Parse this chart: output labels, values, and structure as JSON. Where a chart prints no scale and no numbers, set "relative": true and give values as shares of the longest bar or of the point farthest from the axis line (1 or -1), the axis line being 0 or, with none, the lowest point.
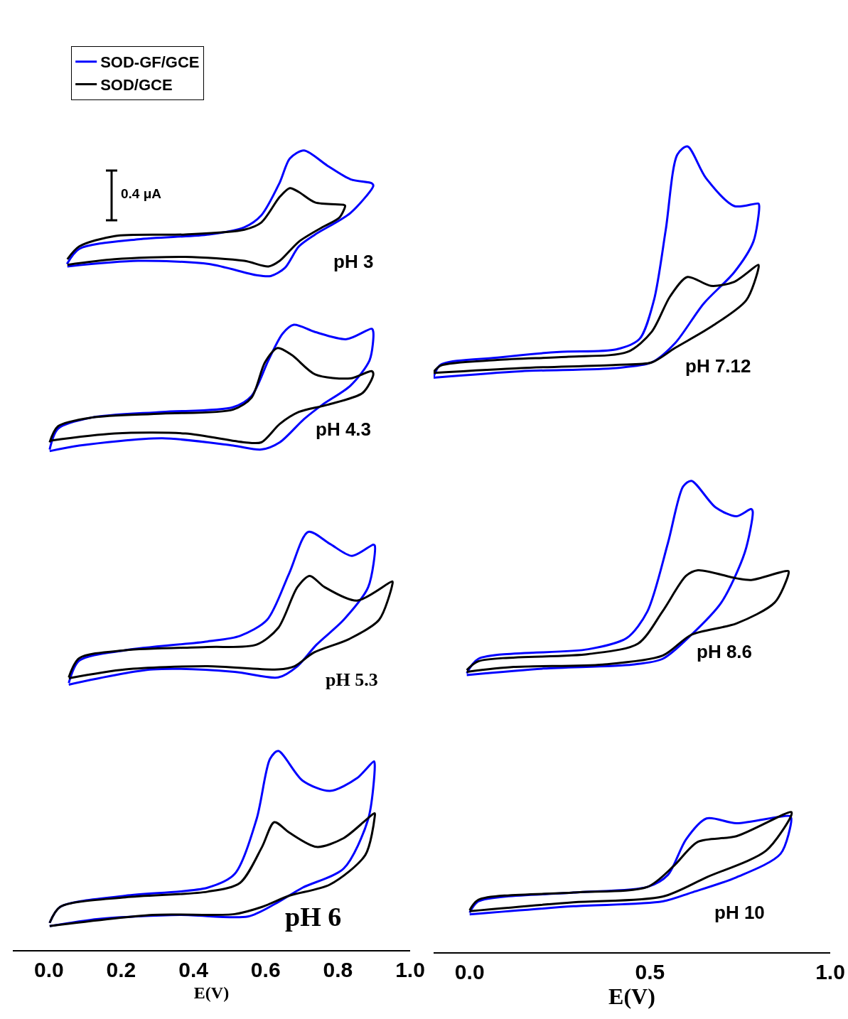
{
  "chart_data": [
    {
      "type": "line",
      "relative": true,
      "xlabel": "E(V)",
      "xlim": [
        -0.1,
        1.0
      ],
      "xticks": [
        {
          "value": 0,
          "label": "0.0"
        },
        0.2,
        0.4,
        0.6,
        0.8,
        {
          "value": 1,
          "label": "1.0"
        }
      ],
      "legend": "top left",
      "marker": "none",
      "annotations": [
        "0.4 μA",
        "pH 3",
        "pH 4.3",
        "pH 5.3",
        "pH 6"
      ],
      "series": [
        {
          "name": "SOD-GF/GCE",
          "color": "#0000ff",
          "x": [
            0.05,
            0.084,
            0.247,
            0.443,
            0.541,
            0.588,
            0.639,
            0.667,
            0.706,
            0.771,
            0.835,
            0.894,
            0.898,
            0.835,
            0.737,
            0.692,
            0.653,
            0.614,
            0.575,
            0.443,
            0.247,
            0.051
          ],
          "values": [
            0.858,
            0.877,
            0.889,
            0.895,
            0.904,
            0.919,
            0.96,
            0.99,
            1.0,
            0.981,
            0.964,
            0.959,
            0.956,
            0.922,
            0.895,
            0.88,
            0.853,
            0.843,
            0.844,
            0.858,
            0.862,
            0.855
          ]
        },
        {
          "name": "SOD/GCE",
          "color": "#000000",
          "x": [
            0.051,
            0.084,
            0.182,
            0.378,
            0.541,
            0.588,
            0.639,
            0.667,
            0.692,
            0.737,
            0.816,
            0.82,
            0.804,
            0.757,
            0.692,
            0.639,
            0.608,
            0.541,
            0.378,
            0.182,
            0.051
          ],
          "values": [
            0.864,
            0.88,
            0.893,
            0.895,
            0.901,
            0.91,
            0.942,
            0.953,
            0.948,
            0.935,
            0.932,
            0.931,
            0.916,
            0.904,
            0.886,
            0.862,
            0.855,
            0.862,
            0.867,
            0.864,
            0.857
          ]
        },
        {
          "color": "#0000ff",
          "x": [
            0.002,
            0.025,
            0.118,
            0.314,
            0.51,
            0.561,
            0.608,
            0.647,
            0.678,
            0.737,
            0.824,
            0.894,
            0.898,
            0.888,
            0.835,
            0.757,
            0.706,
            0.639,
            0.588,
            0.51,
            0.314,
            0.084,
            0.002
          ],
          "values": [
            0.626,
            0.652,
            0.666,
            0.673,
            0.679,
            0.693,
            0.738,
            0.771,
            0.782,
            0.773,
            0.764,
            0.777,
            0.773,
            0.738,
            0.706,
            0.682,
            0.664,
            0.635,
            0.626,
            0.631,
            0.64,
            0.631,
            0.624
          ]
        },
        {
          "color": "#000000",
          "x": [
            0.002,
            0.025,
            0.118,
            0.314,
            0.51,
            0.561,
            0.598,
            0.633,
            0.673,
            0.737,
            0.835,
            0.894,
            0.898,
            0.869,
            0.771,
            0.692,
            0.639,
            0.588,
            0.541,
            0.378,
            0.182,
            0.002
          ],
          "values": [
            0.635,
            0.655,
            0.666,
            0.671,
            0.676,
            0.691,
            0.735,
            0.753,
            0.744,
            0.72,
            0.715,
            0.724,
            0.72,
            0.697,
            0.682,
            0.673,
            0.658,
            0.635,
            0.635,
            0.646,
            0.646,
            0.637
          ]
        },
        {
          "color": "#0000ff",
          "x": [
            0.055,
            0.084,
            0.212,
            0.439,
            0.529,
            0.604,
            0.665,
            0.718,
            0.778,
            0.839,
            0.898,
            0.902,
            0.884,
            0.816,
            0.741,
            0.688,
            0.635,
            0.514,
            0.288,
            0.055
          ],
          "values": [
            0.334,
            0.362,
            0.375,
            0.386,
            0.393,
            0.413,
            0.471,
            0.523,
            0.508,
            0.493,
            0.507,
            0.506,
            0.454,
            0.413,
            0.382,
            0.355,
            0.341,
            0.348,
            0.351,
            0.332
          ]
        },
        {
          "color": "#000000",
          "x": [
            0.055,
            0.084,
            0.212,
            0.439,
            0.575,
            0.635,
            0.688,
            0.722,
            0.763,
            0.853,
            0.951,
            0.951,
            0.914,
            0.831,
            0.733,
            0.68,
            0.635,
            0.439,
            0.212,
            0.055
          ],
          "values": [
            0.341,
            0.365,
            0.375,
            0.379,
            0.382,
            0.403,
            0.454,
            0.468,
            0.454,
            0.437,
            0.461,
            0.458,
            0.413,
            0.389,
            0.372,
            0.355,
            0.351,
            0.355,
            0.351,
            0.34
          ]
        },
        {
          "color": "#0000ff",
          "x": [
            0.002,
            0.031,
            0.212,
            0.439,
            0.514,
            0.575,
            0.612,
            0.635,
            0.702,
            0.778,
            0.853,
            0.9,
            0.902,
            0.884,
            0.816,
            0.702,
            0.627,
            0.551,
            0.363,
            0.137,
            0.002
          ],
          "values": [
            0.034,
            0.054,
            0.068,
            0.078,
            0.095,
            0.164,
            0.239,
            0.249,
            0.212,
            0.199,
            0.215,
            0.236,
            0.232,
            0.164,
            0.102,
            0.078,
            0.058,
            0.042,
            0.044,
            0.039,
            0.03
          ]
        },
        {
          "color": "#000000",
          "x": [
            0.002,
            0.031,
            0.212,
            0.439,
            0.529,
            0.59,
            0.624,
            0.665,
            0.741,
            0.816,
            0.902,
            0.902,
            0.876,
            0.778,
            0.665,
            0.59,
            0.514,
            0.288,
            0.002
          ],
          "values": [
            0.034,
            0.054,
            0.066,
            0.073,
            0.084,
            0.129,
            0.16,
            0.147,
            0.129,
            0.14,
            0.171,
            0.167,
            0.119,
            0.082,
            0.068,
            0.054,
            0.045,
            0.044,
            0.03
          ]
        }
      ]
    },
    {
      "type": "line",
      "relative": true,
      "xlabel": "E(V)",
      "xlim": [
        -0.1,
        1.0
      ],
      "xticks": [
        {
          "value": 0,
          "label": "0.0"
        },
        {
          "value": 0.5,
          "label": "0.5"
        },
        {
          "value": 1,
          "label": "1.0"
        }
      ],
      "marker": "none",
      "annotations": [
        "pH 7.12",
        "pH 8.6",
        "pH 10"
      ],
      "series": [
        {
          "color": "#0000ff",
          "x": [
            -0.1,
            -0.081,
            0.077,
            0.249,
            0.406,
            0.471,
            0.511,
            0.544,
            0.576,
            0.604,
            0.655,
            0.734,
            0.801,
            0.803,
            0.787,
            0.734,
            0.649,
            0.57,
            0.505,
            0.406,
            0.142,
            -0.1
          ],
          "values": [
            0.714,
            0.729,
            0.738,
            0.745,
            0.748,
            0.761,
            0.809,
            0.897,
            0.99,
            1.0,
            0.961,
            0.926,
            0.929,
            0.926,
            0.882,
            0.844,
            0.805,
            0.756,
            0.732,
            0.725,
            0.721,
            0.713
          ]
        },
        {
          "color": "#000000",
          "x": [
            -0.1,
            -0.081,
            0.077,
            0.274,
            0.438,
            0.505,
            0.556,
            0.604,
            0.669,
            0.734,
            0.801,
            0.801,
            0.767,
            0.669,
            0.57,
            0.505,
            0.406,
            0.142,
            -0.1
          ],
          "values": [
            0.72,
            0.728,
            0.735,
            0.739,
            0.745,
            0.77,
            0.814,
            0.838,
            0.827,
            0.832,
            0.853,
            0.849,
            0.809,
            0.776,
            0.75,
            0.732,
            0.729,
            0.725,
            0.719
          ]
        },
        {
          "color": "#0000ff",
          "x": [
            -0.008,
            0.024,
            0.329,
            0.436,
            0.493,
            0.55,
            0.592,
            0.615,
            0.682,
            0.74,
            0.781,
            0.785,
            0.763,
            0.698,
            0.615,
            0.535,
            0.452,
            0.205,
            -0.008
          ],
          "values": [
            0.346,
            0.364,
            0.376,
            0.39,
            0.423,
            0.508,
            0.578,
            0.585,
            0.552,
            0.541,
            0.55,
            0.547,
            0.496,
            0.434,
            0.394,
            0.364,
            0.357,
            0.352,
            0.344
          ]
        },
        {
          "color": "#000000",
          "x": [
            -0.008,
            0.024,
            0.329,
            0.467,
            0.535,
            0.6,
            0.633,
            0.74,
            0.781,
            0.884,
            0.884,
            0.846,
            0.74,
            0.615,
            0.535,
            0.369,
            0.122,
            -0.008
          ],
          "values": [
            0.35,
            0.361,
            0.37,
            0.383,
            0.423,
            0.467,
            0.474,
            0.464,
            0.462,
            0.473,
            0.469,
            0.434,
            0.408,
            0.394,
            0.368,
            0.357,
            0.354,
            0.348
          ]
        },
        {
          "color": "#0000ff",
          "x": [
            0,
            0.024,
            0.288,
            0.493,
            0.55,
            0.6,
            0.657,
            0.74,
            0.888,
            0.892,
            0.862,
            0.74,
            0.615,
            0.535,
            0.288,
            0
          ],
          "values": [
            0.049,
            0.063,
            0.074,
            0.081,
            0.096,
            0.14,
            0.166,
            0.16,
            0.169,
            0.166,
            0.122,
            0.093,
            0.074,
            0.063,
            0.057,
            0.047
          ]
        },
        {
          "color": "#000000",
          "x": [
            0,
            0.024,
            0.288,
            0.493,
            0.566,
            0.633,
            0.74,
            0.892,
            0.892,
            0.822,
            0.657,
            0.535,
            0.288,
            0
          ],
          "values": [
            0.052,
            0.065,
            0.074,
            0.081,
            0.107,
            0.137,
            0.144,
            0.174,
            0.17,
            0.126,
            0.093,
            0.069,
            0.062,
            0.051
          ]
        }
      ]
    }
  ]
}
